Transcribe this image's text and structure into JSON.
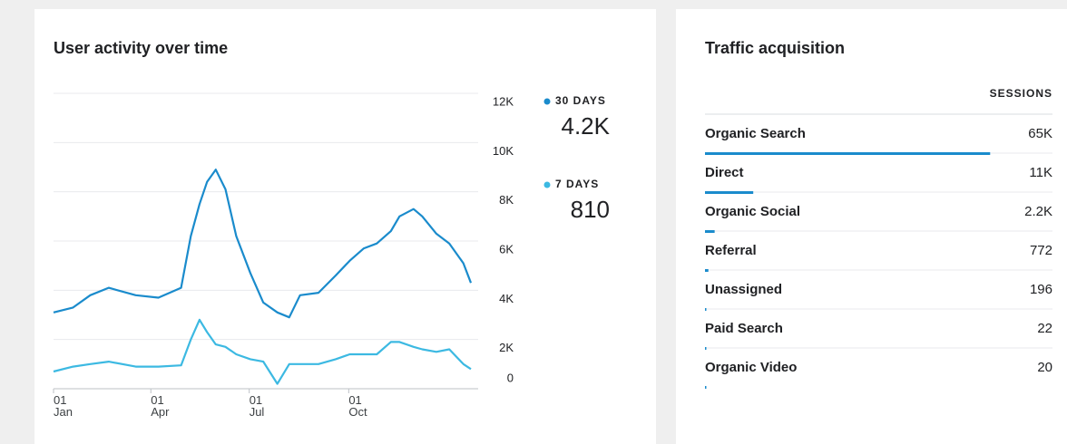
{
  "chart_data": {
    "type": "line",
    "title": "User activity over time",
    "x": [
      0,
      18,
      34,
      51,
      76,
      97,
      118,
      127,
      135,
      142,
      150,
      159,
      169,
      182,
      194,
      207,
      218,
      228,
      245,
      261,
      274,
      287,
      299,
      312,
      320,
      333,
      341,
      354,
      366,
      379,
      386
    ],
    "xlim": [
      0,
      386
    ],
    "xticks": [
      {
        "value": 0,
        "label": "01\nJan"
      },
      {
        "value": 90,
        "label": "01\nApr"
      },
      {
        "value": 181,
        "label": "01\nJul"
      },
      {
        "value": 273,
        "label": "01\nOct"
      }
    ],
    "ylim": [
      0,
      12000
    ],
    "yticks": [
      0,
      {
        "value": 2000,
        "label": "2K"
      },
      {
        "value": 4000,
        "label": "4K"
      },
      {
        "value": 6000,
        "label": "6K"
      },
      {
        "value": 8000,
        "label": "8K"
      },
      {
        "value": 10000,
        "label": "10K"
      },
      {
        "value": 12000,
        "label": "12K"
      }
    ],
    "grid": true,
    "series": [
      {
        "name": "30 DAYS",
        "color": "#1a8bcc",
        "latest_label": "4.2K",
        "values": [
          3100,
          3300,
          3800,
          4100,
          3800,
          3700,
          4100,
          6200,
          7500,
          8400,
          8900,
          8100,
          6200,
          4700,
          3500,
          3100,
          2900,
          3800,
          3900,
          4600,
          5200,
          5700,
          5900,
          6400,
          7000,
          7300,
          7000,
          6300,
          5900,
          5100,
          4300
        ]
      },
      {
        "name": "7 DAYS",
        "color": "#3cb9e2",
        "latest_label": "810",
        "values": [
          700,
          900,
          1000,
          1100,
          900,
          900,
          950,
          2000,
          2800,
          2300,
          1800,
          1700,
          1400,
          1200,
          1100,
          200,
          1000,
          1000,
          1000,
          1200,
          1400,
          1400,
          1400,
          1900,
          1900,
          1700,
          1600,
          1500,
          1600,
          1000,
          800
        ]
      }
    ]
  },
  "traffic": {
    "title": "Traffic acquisition",
    "column": "SESSIONS",
    "bar_color": "#1a8bcc",
    "rows": [
      {
        "name": "Organic Search",
        "value": 65000,
        "label": "65K"
      },
      {
        "name": "Direct",
        "value": 11000,
        "label": "11K"
      },
      {
        "name": "Organic Social",
        "value": 2200,
        "label": "2.2K"
      },
      {
        "name": "Referral",
        "value": 772,
        "label": "772"
      },
      {
        "name": "Unassigned",
        "value": 196,
        "label": "196"
      },
      {
        "name": "Paid Search",
        "value": 22,
        "label": "22"
      },
      {
        "name": "Organic Video",
        "value": 20,
        "label": "20"
      }
    ]
  }
}
